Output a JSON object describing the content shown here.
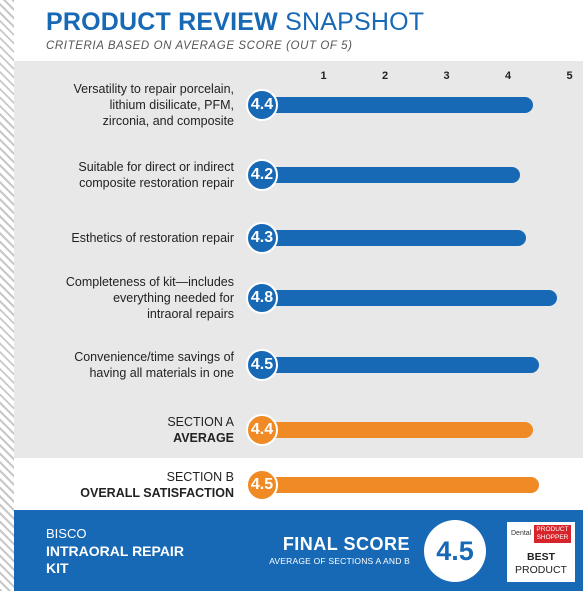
{
  "header": {
    "title_bold": "PRODUCT REVIEW",
    "title_light": "SNAPSHOT",
    "subtitle": "CRITERIA BASED ON AVERAGE SCORE (OUT OF 5)"
  },
  "chart_data": {
    "type": "bar",
    "orientation": "horizontal",
    "xlim": [
      0,
      5
    ],
    "ticks": [
      "1",
      "2",
      "3",
      "4",
      "5"
    ],
    "rows": [
      {
        "label": "Versatility to repair porcelain, lithium disilicate, PFM, zirconia, and composite",
        "value": 4.4,
        "value_label": "4.4",
        "group": "criteria"
      },
      {
        "label": "Suitable for direct or indirect composite restoration repair",
        "value": 4.2,
        "value_label": "4.2",
        "group": "criteria"
      },
      {
        "label": "Esthetics of restoration repair",
        "value": 4.3,
        "value_label": "4.3",
        "group": "criteria"
      },
      {
        "label": "Completeness of kit—includes everything needed for intraoral repairs",
        "value": 4.8,
        "value_label": "4.8",
        "group": "criteria"
      },
      {
        "label": "Convenience/time savings of having all materials in one",
        "value": 4.5,
        "value_label": "4.5",
        "group": "criteria"
      },
      {
        "label_top": "SECTION A",
        "label_bottom": "AVERAGE",
        "value": 4.4,
        "value_label": "4.4",
        "group": "section"
      },
      {
        "label_top": "SECTION B",
        "label_bottom": "OVERALL SATISFACTION",
        "value": 4.5,
        "value_label": "4.5",
        "group": "section"
      }
    ],
    "colors": {
      "criteria": "#1769b6",
      "section": "#f08a24"
    }
  },
  "footer": {
    "brand": "BISCO",
    "product": "INTRAORAL REPAIR KIT",
    "final_label": "FINAL SCORE",
    "final_sublabel": "AVERAGE OF SECTIONS A AND B",
    "final_value": "4.5",
    "badge": {
      "dental": "Dental",
      "shopper": "PRODUCT SHOPPER",
      "best": "BEST",
      "product": "PRODUCT"
    }
  }
}
